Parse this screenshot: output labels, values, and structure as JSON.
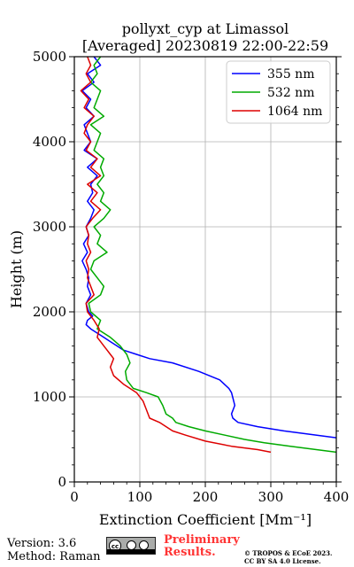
{
  "chart_data": {
    "type": "line",
    "title": "pollyxt_cyp at Limassol",
    "subtitle": "[Averaged] 20230819 22:00-22:59",
    "xlabel": "Extinction Coefficient [Mm⁻¹]",
    "ylabel": "Height (m)",
    "xlim": [
      0,
      400
    ],
    "ylim": [
      0,
      5000
    ],
    "xticks": [
      0,
      100,
      200,
      300,
      400
    ],
    "yticks": [
      0,
      1000,
      2000,
      3000,
      4000,
      5000
    ],
    "grid": true,
    "legend_position": "top-right",
    "series": [
      {
        "name": "355 nm",
        "color": "#0000ff",
        "points": [
          [
            400,
            520
          ],
          [
            360,
            560
          ],
          [
            320,
            600
          ],
          [
            280,
            650
          ],
          [
            250,
            700
          ],
          [
            242,
            750
          ],
          [
            240,
            800
          ],
          [
            245,
            900
          ],
          [
            240,
            1050
          ],
          [
            236,
            1100
          ],
          [
            222,
            1200
          ],
          [
            190,
            1300
          ],
          [
            150,
            1400
          ],
          [
            115,
            1450
          ],
          [
            95,
            1500
          ],
          [
            75,
            1550
          ],
          [
            65,
            1600
          ],
          [
            55,
            1650
          ],
          [
            45,
            1700
          ],
          [
            35,
            1750
          ],
          [
            25,
            1800
          ],
          [
            18,
            1850
          ],
          [
            20,
            1900
          ],
          [
            28,
            1950
          ],
          [
            22,
            2000
          ],
          [
            18,
            2100
          ],
          [
            25,
            2200
          ],
          [
            20,
            2300
          ],
          [
            22,
            2400
          ],
          [
            18,
            2500
          ],
          [
            12,
            2600
          ],
          [
            20,
            2700
          ],
          [
            14,
            2800
          ],
          [
            22,
            2900
          ],
          [
            18,
            3000
          ],
          [
            25,
            3100
          ],
          [
            30,
            3200
          ],
          [
            20,
            3300
          ],
          [
            28,
            3400
          ],
          [
            25,
            3500
          ],
          [
            35,
            3600
          ],
          [
            20,
            3700
          ],
          [
            35,
            3800
          ],
          [
            15,
            3900
          ],
          [
            25,
            4000
          ],
          [
            20,
            4100
          ],
          [
            15,
            4200
          ],
          [
            30,
            4300
          ],
          [
            18,
            4400
          ],
          [
            25,
            4500
          ],
          [
            12,
            4600
          ],
          [
            30,
            4700
          ],
          [
            20,
            4800
          ],
          [
            40,
            4900
          ],
          [
            30,
            5000
          ]
        ]
      },
      {
        "name": "532 nm",
        "color": "#00aa00",
        "points": [
          [
            400,
            350
          ],
          [
            380,
            370
          ],
          [
            330,
            420
          ],
          [
            290,
            460
          ],
          [
            260,
            500
          ],
          [
            230,
            550
          ],
          [
            200,
            600
          ],
          [
            175,
            650
          ],
          [
            155,
            700
          ],
          [
            150,
            750
          ],
          [
            140,
            800
          ],
          [
            135,
            900
          ],
          [
            128,
            1000
          ],
          [
            110,
            1050
          ],
          [
            90,
            1100
          ],
          [
            80,
            1200
          ],
          [
            78,
            1300
          ],
          [
            85,
            1400
          ],
          [
            80,
            1500
          ],
          [
            70,
            1600
          ],
          [
            55,
            1700
          ],
          [
            45,
            1750
          ],
          [
            35,
            1800
          ],
          [
            40,
            1900
          ],
          [
            25,
            2000
          ],
          [
            22,
            2100
          ],
          [
            40,
            2200
          ],
          [
            45,
            2300
          ],
          [
            35,
            2400
          ],
          [
            25,
            2500
          ],
          [
            30,
            2600
          ],
          [
            50,
            2700
          ],
          [
            35,
            2800
          ],
          [
            40,
            2900
          ],
          [
            30,
            3000
          ],
          [
            45,
            3100
          ],
          [
            55,
            3200
          ],
          [
            40,
            3300
          ],
          [
            45,
            3400
          ],
          [
            35,
            3500
          ],
          [
            45,
            3600
          ],
          [
            40,
            3700
          ],
          [
            45,
            3800
          ],
          [
            30,
            3900
          ],
          [
            35,
            4000
          ],
          [
            40,
            4100
          ],
          [
            25,
            4200
          ],
          [
            45,
            4300
          ],
          [
            30,
            4400
          ],
          [
            35,
            4500
          ],
          [
            40,
            4600
          ],
          [
            25,
            4700
          ],
          [
            35,
            4800
          ],
          [
            30,
            4900
          ],
          [
            40,
            5000
          ]
        ]
      },
      {
        "name": "1064 nm",
        "color": "#dd0000",
        "points": [
          [
            300,
            350
          ],
          [
            280,
            380
          ],
          [
            240,
            420
          ],
          [
            200,
            480
          ],
          [
            170,
            550
          ],
          [
            150,
            600
          ],
          [
            130,
            700
          ],
          [
            115,
            750
          ],
          [
            110,
            850
          ],
          [
            105,
            950
          ],
          [
            95,
            1050
          ],
          [
            75,
            1150
          ],
          [
            60,
            1250
          ],
          [
            55,
            1350
          ],
          [
            60,
            1450
          ],
          [
            55,
            1500
          ],
          [
            50,
            1550
          ],
          [
            45,
            1600
          ],
          [
            40,
            1650
          ],
          [
            35,
            1700
          ],
          [
            38,
            1800
          ],
          [
            30,
            1900
          ],
          [
            20,
            2000
          ],
          [
            18,
            2100
          ],
          [
            30,
            2200
          ],
          [
            25,
            2300
          ],
          [
            20,
            2400
          ],
          [
            22,
            2500
          ],
          [
            18,
            2600
          ],
          [
            25,
            2700
          ],
          [
            20,
            2800
          ],
          [
            22,
            2900
          ],
          [
            18,
            3000
          ],
          [
            28,
            3100
          ],
          [
            40,
            3200
          ],
          [
            25,
            3300
          ],
          [
            35,
            3400
          ],
          [
            20,
            3500
          ],
          [
            40,
            3600
          ],
          [
            25,
            3700
          ],
          [
            35,
            3800
          ],
          [
            18,
            3900
          ],
          [
            25,
            4000
          ],
          [
            15,
            4100
          ],
          [
            20,
            4200
          ],
          [
            30,
            4300
          ],
          [
            15,
            4400
          ],
          [
            22,
            4500
          ],
          [
            10,
            4600
          ],
          [
            25,
            4700
          ],
          [
            18,
            4800
          ],
          [
            25,
            4900
          ],
          [
            20,
            5000
          ]
        ]
      }
    ]
  },
  "footer": {
    "version": "Version: 3.6",
    "method": "Method: Raman",
    "cc_mark": "cc",
    "preliminary_1": "Preliminary",
    "preliminary_2": "Results.",
    "copyright_1": "© TROPOS & ECoE 2023.",
    "copyright_2": "CC BY SA 4.0 License."
  },
  "colors": {
    "grid": "#b0b0b0",
    "preliminary": "#ff3333"
  }
}
